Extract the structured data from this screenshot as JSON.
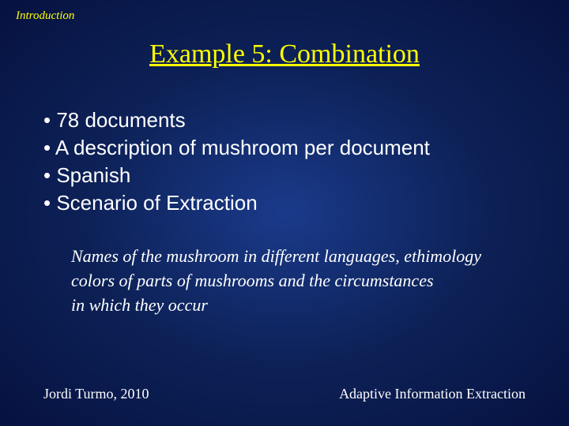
{
  "section_label": "Introduction",
  "title": "Example 5: Combination",
  "bullets": [
    "• 78 documents",
    "• A description of mushroom per document",
    "• Spanish",
    "• Scenario of Extraction"
  ],
  "subtext": [
    "Names of the mushroom in different languages,  ethimology",
    "colors of parts of mushrooms and the circumstances",
    "in which they occur"
  ],
  "footer_left": "Jordi Turmo, 2010",
  "footer_right": "Adaptive Information Extraction",
  "style": {
    "background_gradient": {
      "center": "#1a3a8a",
      "mid": "#0d2157",
      "edge": "#061240"
    },
    "accent_color": "#ffff00",
    "text_color": "#ffffff",
    "section_label_fontsize": 15,
    "title_fontsize": 34,
    "bullet_fontsize": 26,
    "subtext_fontsize": 22,
    "footer_fontsize": 18,
    "title_underline": true,
    "bullet_font": "Verdana",
    "serif_font": "Georgia"
  }
}
